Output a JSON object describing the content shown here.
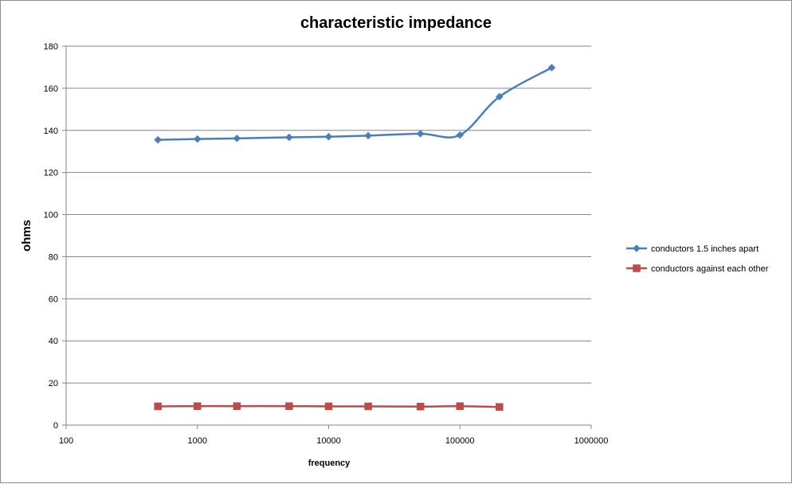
{
  "chart_data": {
    "type": "line",
    "title": "characteristic impedance",
    "xlabel": "frequency",
    "ylabel": "ohms",
    "x_scale": "log",
    "xlim": [
      100,
      1000000
    ],
    "ylim": [
      0,
      180
    ],
    "x_ticks": [
      "100",
      "1000",
      "10000",
      "100000",
      "1000000"
    ],
    "y_ticks": [
      "0",
      "20",
      "40",
      "60",
      "80",
      "100",
      "120",
      "140",
      "160",
      "180"
    ],
    "grid": "horizontal",
    "legend_position": "right",
    "series": [
      {
        "name": "conductors 1.5 inches apart",
        "color": "#4a7ebb",
        "marker": "diamond",
        "x": [
          500,
          1000,
          2000,
          5000,
          10000,
          20000,
          50000,
          100000,
          200000,
          500000
        ],
        "y": [
          135.5,
          135.9,
          136.2,
          136.7,
          137.0,
          137.5,
          138.4,
          137.8,
          156.0,
          169.8
        ]
      },
      {
        "name": "conductors against each other",
        "color": "#be4b48",
        "marker": "square",
        "x": [
          500,
          1000,
          2000,
          5000,
          10000,
          20000,
          50000,
          100000,
          200000
        ],
        "y": [
          8.9,
          9.0,
          9.0,
          9.0,
          8.9,
          8.9,
          8.8,
          9.0,
          8.6
        ]
      }
    ]
  }
}
